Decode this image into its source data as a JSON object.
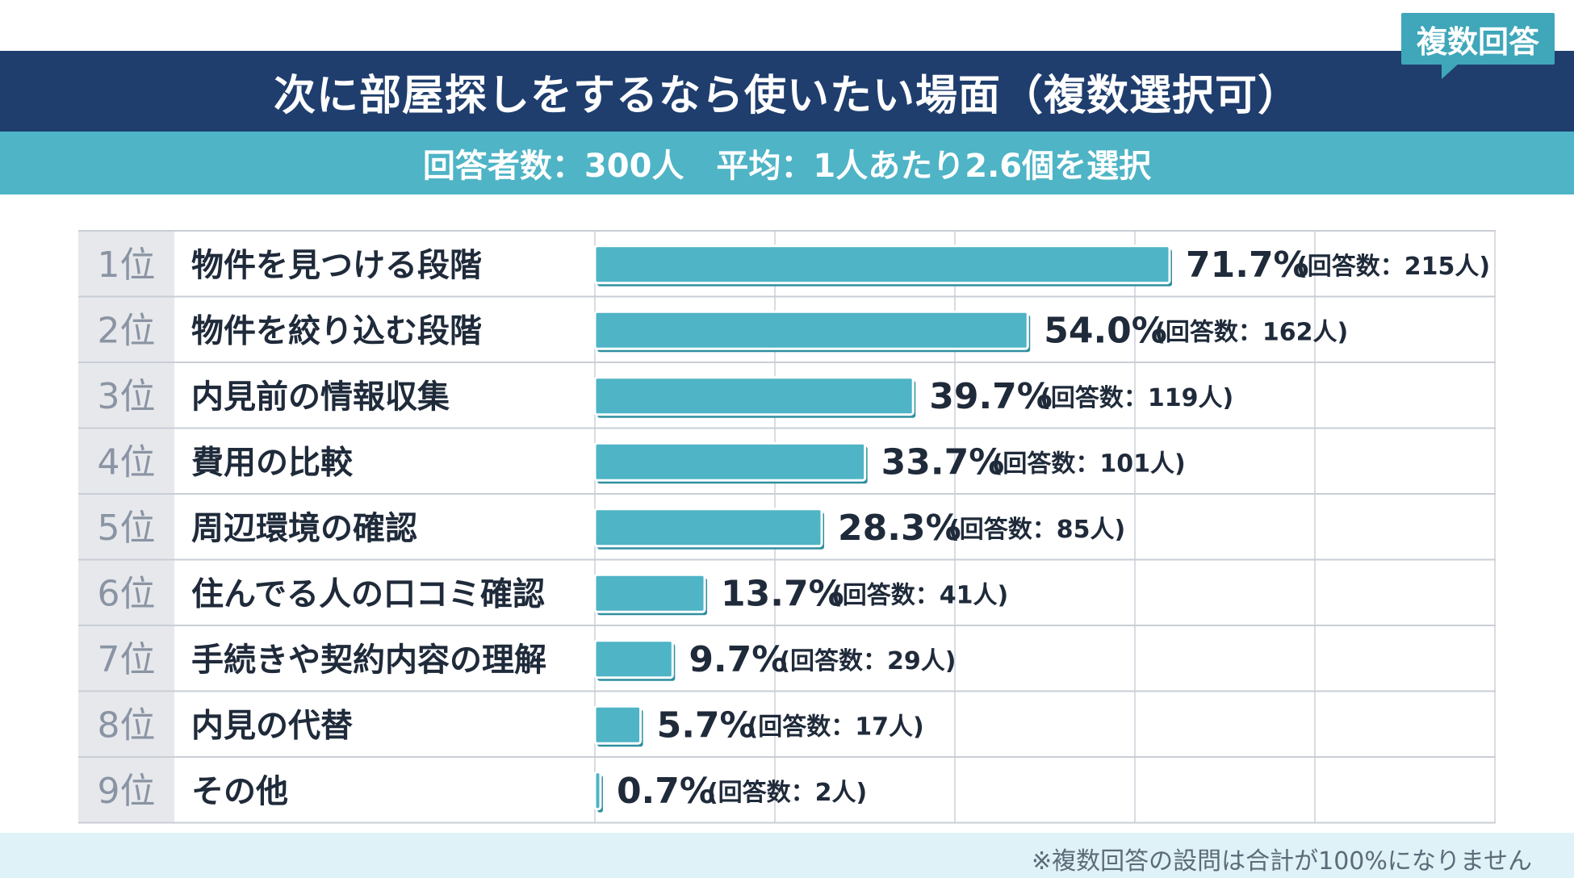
{
  "badge": "複数回答",
  "header": {
    "title": "次に部屋探しをするなら使いたい場面（複数選択可）",
    "subtitle": "回答者数：300人　平均：1人あたり2.6個を選択"
  },
  "footnote": "※複数回答の設問は合計が100%になりません",
  "colors": {
    "title_band": "#1f3e6e",
    "subtitle_band": "#4eb4c6",
    "bar_fill": "#4eb4c6",
    "bar_shadow": "#2f8fa0",
    "rank_column": "#e6e8ec",
    "footnote_band": "#dff2f8"
  },
  "chart_data": {
    "type": "bar",
    "orientation": "horizontal",
    "xlim": [
      0,
      100
    ],
    "grid": true,
    "ranks": [
      "1位",
      "2位",
      "3位",
      "4位",
      "5位",
      "6位",
      "7位",
      "8位",
      "9位"
    ],
    "categories": [
      "物件を見つける段階",
      "物件を絞り込む段階",
      "内見前の情報収集",
      "費用の比較",
      "周辺環境の確認",
      "住んでる人の口コミ確認",
      "手続きや契約内容の理解",
      "内見の代替",
      "その他"
    ],
    "values": [
      71.7,
      54.0,
      39.7,
      33.7,
      28.3,
      13.7,
      9.7,
      5.7,
      0.7
    ],
    "value_labels": [
      "71.7%",
      "54.0%",
      "39.7%",
      "33.7%",
      "28.3%",
      "13.7%",
      "9.7%",
      "5.7%",
      "0.7%"
    ],
    "count_labels": [
      "(回答数：215人)",
      "(回答数：162人)",
      "(回答数：119人)",
      "(回答数：101人)",
      "(回答数：85人)",
      "(回答数：41人)",
      "(回答数：29人)",
      "(回答数：17人)",
      "(回答数：2人)"
    ]
  }
}
